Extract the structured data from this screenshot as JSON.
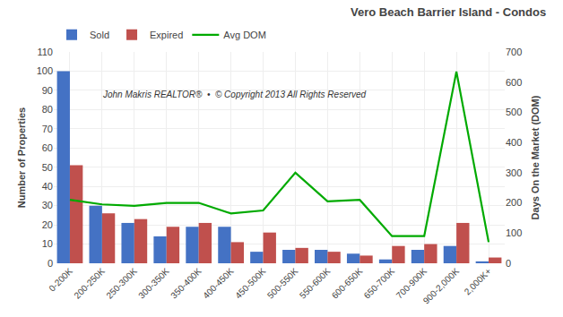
{
  "chart_data": {
    "type": "bar",
    "title": "Vero Beach Barrier Island - Condos",
    "categories": [
      "0-200K",
      "200-250K",
      "250-300K",
      "300-350K",
      "350-400K",
      "400-450K",
      "450-500K",
      "500-550K",
      "550-600K",
      "600-650K",
      "650-700K",
      "700-900K",
      "900-2,000K",
      "2,000K+"
    ],
    "series": [
      {
        "name": "Sold",
        "color": "#4472C4",
        "values": [
          100,
          30,
          21,
          14,
          19,
          19,
          6,
          7,
          7,
          5,
          2,
          7,
          9,
          1
        ]
      },
      {
        "name": "Expired",
        "color": "#C0504D",
        "values": [
          51,
          26,
          23,
          19,
          21,
          11,
          16,
          8,
          6,
          4,
          9,
          10,
          21,
          3
        ]
      },
      {
        "name": "Avg DOM",
        "color": "#00aa00",
        "type": "line",
        "axis": "y2",
        "values": [
          210,
          195,
          190,
          200,
          200,
          165,
          175,
          300,
          205,
          210,
          90,
          90,
          635,
          70
        ]
      }
    ],
    "ylabel": "Number of Properties",
    "y2label": "Days On the Market (DOM)",
    "ylim": [
      0,
      110
    ],
    "yticks": [
      0,
      10,
      20,
      30,
      40,
      50,
      60,
      70,
      80,
      90,
      100,
      110
    ],
    "y2lim": [
      0,
      700
    ],
    "y2ticks": [
      0,
      100,
      200,
      300,
      400,
      500,
      600,
      700
    ],
    "grid": true,
    "legend": "top",
    "annotations": [
      "John Makris REALTOR®  •  © Copyright 2013 All Rights Reserved"
    ]
  }
}
